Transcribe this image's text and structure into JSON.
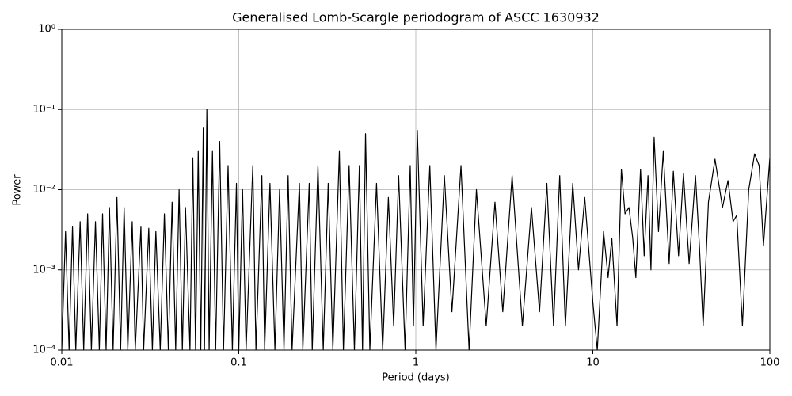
{
  "chart_data": {
    "type": "line",
    "title": "Generalised Lomb-Scargle periodogram of ASCC 1630932",
    "x_label": "Period (days)",
    "y_label": "Power",
    "x_log": true,
    "y_log": true,
    "grid": true,
    "xlim": [
      0.01,
      100
    ],
    "ylim": [
      0.0001,
      1
    ],
    "xticks": [
      0.01,
      0.1,
      1,
      10,
      100
    ],
    "yticks": [
      {
        "value": 0.0001,
        "label": "10⁻⁴"
      },
      {
        "value": 0.001,
        "label": "10⁻³"
      },
      {
        "value": 0.01,
        "label": "10⁻²"
      },
      {
        "value": 0.1,
        "label": "10⁻¹"
      },
      {
        "value": 1,
        "label": "10⁰"
      }
    ],
    "color": "#000000",
    "x": [
      0.01,
      0.0105,
      0.011,
      0.0115,
      0.012,
      0.0127,
      0.0133,
      0.014,
      0.0147,
      0.0155,
      0.0163,
      0.017,
      0.0178,
      0.0186,
      0.0195,
      0.0205,
      0.0215,
      0.0225,
      0.0236,
      0.025,
      0.026,
      0.028,
      0.029,
      0.031,
      0.0325,
      0.034,
      0.036,
      0.038,
      0.04,
      0.042,
      0.044,
      0.046,
      0.048,
      0.05,
      0.053,
      0.055,
      0.057,
      0.059,
      0.061,
      0.063,
      0.064,
      0.066,
      0.068,
      0.071,
      0.074,
      0.078,
      0.082,
      0.087,
      0.092,
      0.097,
      0.1,
      0.105,
      0.11,
      0.12,
      0.125,
      0.135,
      0.14,
      0.15,
      0.16,
      0.17,
      0.18,
      0.19,
      0.2,
      0.22,
      0.23,
      0.25,
      0.26,
      0.28,
      0.3,
      0.32,
      0.34,
      0.37,
      0.39,
      0.42,
      0.45,
      0.48,
      0.5,
      0.52,
      0.55,
      0.6,
      0.65,
      0.7,
      0.75,
      0.8,
      0.87,
      0.93,
      0.97,
      1.02,
      1.1,
      1.2,
      1.3,
      1.45,
      1.6,
      1.8,
      2.0,
      2.2,
      2.5,
      2.8,
      3.1,
      3.5,
      4.0,
      4.5,
      5.0,
      5.5,
      6.0,
      6.5,
      7.0,
      7.7,
      8.3,
      9.0,
      10.0,
      10.6,
      11.5,
      12.2,
      12.8,
      13.7,
      14.5,
      15.2,
      16.0,
      16.8,
      17.5,
      18.6,
      19.5,
      20.5,
      21.3,
      22.2,
      23.5,
      25.0,
      27.0,
      28.5,
      30.5,
      32.5,
      35.0,
      38.0,
      40.0,
      42.0,
      45.0,
      49.0,
      54.0,
      58.0,
      62.0,
      65.0,
      70.0,
      76.0,
      82.0,
      87.0,
      92.0,
      100.0
    ],
    "values": [
      0.0001,
      0.003,
      0.0001,
      0.0035,
      0.0001,
      0.004,
      0.0001,
      0.005,
      0.0001,
      0.004,
      0.0001,
      0.005,
      0.0001,
      0.006,
      0.0001,
      0.008,
      0.0001,
      0.006,
      0.0001,
      0.004,
      0.0001,
      0.0035,
      0.0001,
      0.0033,
      0.0001,
      0.003,
      0.0001,
      0.005,
      0.0001,
      0.007,
      0.0001,
      0.01,
      0.0001,
      0.006,
      0.0001,
      0.025,
      0.0001,
      0.03,
      0.0001,
      0.06,
      0.0001,
      0.1,
      0.0001,
      0.03,
      0.0001,
      0.04,
      0.0001,
      0.02,
      0.0001,
      0.012,
      0.0001,
      0.01,
      0.0001,
      0.02,
      0.0001,
      0.015,
      0.0001,
      0.012,
      0.0001,
      0.01,
      0.0001,
      0.015,
      0.0001,
      0.012,
      0.0001,
      0.012,
      0.0001,
      0.02,
      0.0001,
      0.012,
      0.0001,
      0.03,
      0.0001,
      0.02,
      0.0001,
      0.02,
      0.0001,
      0.05,
      0.0001,
      0.012,
      0.0001,
      0.008,
      0.0002,
      0.015,
      0.0001,
      0.02,
      0.0002,
      0.055,
      0.0002,
      0.02,
      0.0001,
      0.015,
      0.0003,
      0.02,
      0.0001,
      0.01,
      0.0002,
      0.007,
      0.0003,
      0.015,
      0.0002,
      0.006,
      0.0003,
      0.012,
      0.0002,
      0.015,
      0.0002,
      0.012,
      0.001,
      0.008,
      0.0004,
      0.0001,
      0.003,
      0.0008,
      0.0025,
      0.0002,
      0.018,
      0.005,
      0.006,
      0.0025,
      0.0008,
      0.018,
      0.0015,
      0.015,
      0.001,
      0.045,
      0.003,
      0.03,
      0.0012,
      0.017,
      0.0015,
      0.016,
      0.0012,
      0.015,
      0.002,
      0.0002,
      0.007,
      0.024,
      0.006,
      0.013,
      0.004,
      0.0048,
      0.0002,
      0.01,
      0.028,
      0.02,
      0.002,
      0.025
    ]
  }
}
